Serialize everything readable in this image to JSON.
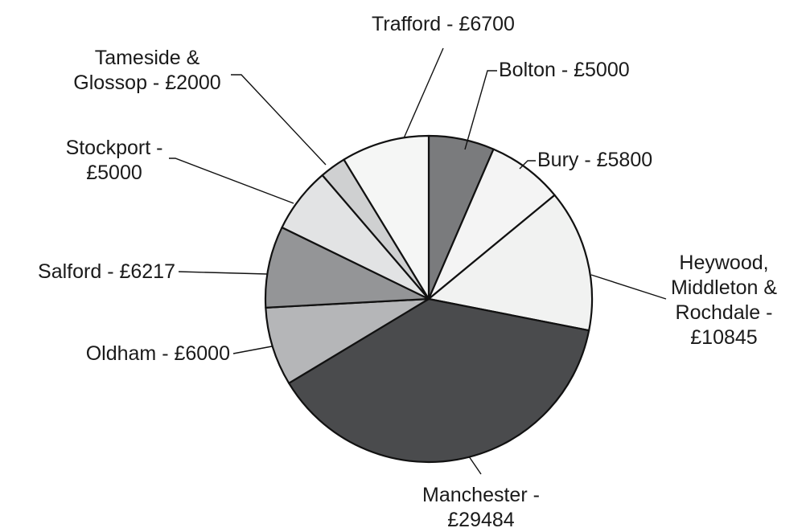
{
  "chart_data": {
    "type": "pie",
    "title": "",
    "slices": [
      {
        "name": "Bolton",
        "value": 5000,
        "color": "#7a7b7d",
        "label_lines": [
          "Bolton - £5000"
        ]
      },
      {
        "name": "Bury",
        "value": 5800,
        "color": "#f4f4f4",
        "label_lines": [
          "Bury - £5800"
        ]
      },
      {
        "name": "Heywood, Middleton & Rochdale",
        "value": 10845,
        "color": "#f1f2f1",
        "label_lines": [
          "Heywood,",
          "Middleton &",
          "Rochdale -",
          "£10845"
        ]
      },
      {
        "name": "Manchester",
        "value": 29484,
        "color": "#4a4b4d",
        "label_lines": [
          "Manchester -",
          "£29484"
        ]
      },
      {
        "name": "Oldham",
        "value": 6000,
        "color": "#b5b6b8",
        "label_lines": [
          "Oldham - £6000"
        ]
      },
      {
        "name": "Salford",
        "value": 6217,
        "color": "#949597",
        "label_lines": [
          "Salford - £6217"
        ]
      },
      {
        "name": "Stockport",
        "value": 5000,
        "color": "#e2e3e4",
        "label_lines": [
          "Stockport -",
          "£5000"
        ]
      },
      {
        "name": "Tameside & Glossop",
        "value": 2000,
        "color": "#cfd0d1",
        "label_lines": [
          "Tameside &",
          "Glossop - £2000"
        ]
      },
      {
        "name": "Trafford",
        "value": 6700,
        "color": "#f5f6f5",
        "label_lines": [
          "Trafford - £6700"
        ]
      }
    ],
    "start_angle_deg": 0,
    "direction": "clockwise",
    "legend": "none"
  }
}
